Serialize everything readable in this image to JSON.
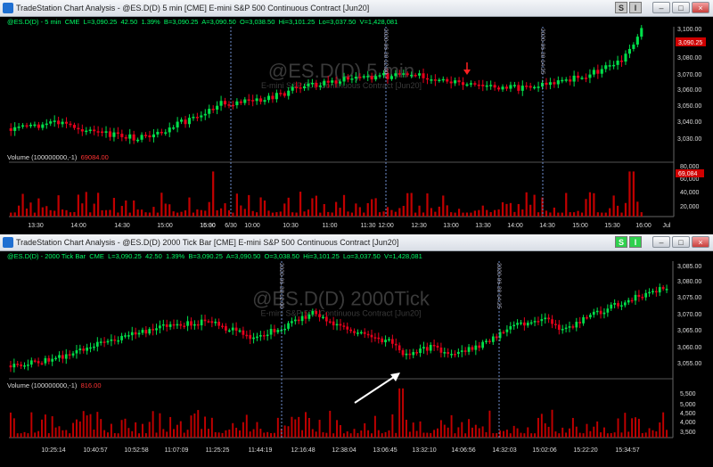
{
  "top": {
    "title": "TradeStation Chart Analysis - @ES.D(D) 5 min [CME] E-mini S&P 500 Continuous Contract [Jun20]",
    "btn_s": "S",
    "btn_i": "I",
    "info": {
      "symbol": "@ES.D(D) - 5 min",
      "exchange": "CME",
      "last": "L=3,090.25",
      "chg": "42.50",
      "pct": "1.39%",
      "bid": "B=3,090.25",
      "ask": "A=3,090.50",
      "open": "O=3,038.50",
      "hi": "Hi=3,101.25",
      "lo": "Lo=3,037.50",
      "vol": "V=1,428,081"
    },
    "watermark": "@ES.D(D) 5 min",
    "watermark_sub": "E-mini S&P 500 Continuous Contract [Jun20]",
    "price_axis": [
      "3,100.00",
      "3,080.00",
      "3,070.00",
      "3,060.00",
      "3,050.00",
      "3,040.00",
      "3,030.00"
    ],
    "price_axis_full": [
      "3,100.00",
      "3,090.00",
      "3,080.00",
      "3,070.00",
      "3,060.00",
      "3,050.00",
      "3,040.00",
      "3,030.00"
    ],
    "last_price_label": "3,090.25",
    "volume_label": "Volume (100000000,-1)",
    "volume_value": "69084.00",
    "volume_axis": [
      "80,000",
      "60,000",
      "40,000",
      "20,000"
    ],
    "volume_badge": "69,084",
    "time_axis": [
      "13:30",
      "14:00",
      "14:30",
      "15:00",
      "15:30",
      "16:00",
      "6/30",
      "10:00",
      "10:30",
      "11:00",
      "11:30",
      "12:00",
      "12:30",
      "13:00",
      "13:30",
      "14:00",
      "14:30",
      "15:00",
      "15:30",
      "16:00",
      "Jul"
    ],
    "vlines": [
      "2020-06-30 12:00",
      "2020-06-30 14:25"
    ]
  },
  "bottom": {
    "title": "TradeStation Chart Analysis - @ES.D(D) 2000 Tick Bar [CME] E-mini S&P 500 Continuous Contract [Jun20]",
    "btn_s": "S",
    "btn_i": "I",
    "info": {
      "symbol": "@ES.D(D) - 2000 Tick Bar",
      "exchange": "CME",
      "last": "L=3,090.25",
      "chg": "42.50",
      "pct": "1.39%",
      "bid": "B=3,090.25",
      "ask": "A=3,090.50",
      "open": "O=3,038.50",
      "hi": "Hi=3,101.25",
      "lo": "Lo=3,037.50",
      "vol": "V=1,428,081"
    },
    "watermark": "@ES.D(D) 2000Tick",
    "watermark_sub": "E-mini S&P 500 Continuous Contract [Jun20]",
    "price_axis": [
      "3,085.00",
      "3,080.00",
      "3,075.00",
      "3,070.00",
      "3,065.00",
      "3,060.00",
      "3,055.00"
    ],
    "volume_label": "Volume (100000000,-1)",
    "volume_value": "816.00",
    "volume_axis": [
      "5,500",
      "5,000",
      "4,500",
      "4,000",
      "3,500"
    ],
    "time_axis": [
      "10:25:14",
      "10:40:57",
      "10:52:58",
      "11:07:09",
      "11:25:25",
      "11:44:19",
      "12:16:48",
      "12:38:04",
      "13:06:45",
      "13:32:10",
      "14:06:56",
      "14:32:03",
      "15:02:06",
      "15:22:20",
      "15:34:57"
    ],
    "vlines": [
      "2020-06-30 12:00",
      "2020-06-30 14:25"
    ]
  },
  "colors": {
    "up": "#00e04a",
    "down": "#e8001c",
    "axis_text": "#dddddd",
    "vline": "#6f8fcf"
  }
}
